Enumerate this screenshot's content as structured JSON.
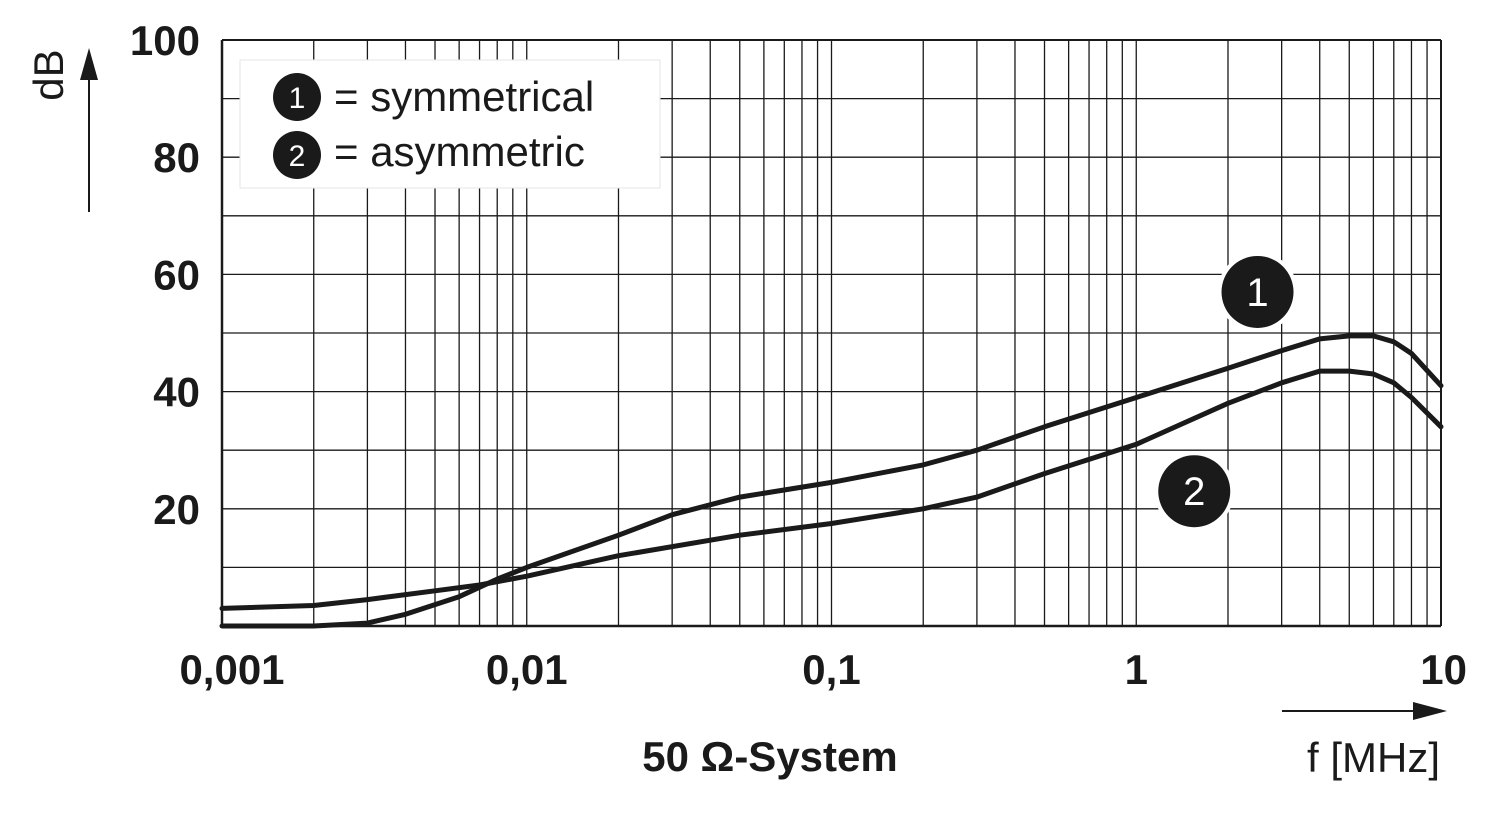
{
  "chart_data": {
    "type": "line",
    "title": "",
    "subtitle": "50 Ω-System",
    "xlabel": "f [MHz]",
    "ylabel": "dB",
    "x_scale": "log",
    "xlim": [
      0.001,
      10
    ],
    "ylim": [
      0,
      100
    ],
    "grid": true,
    "x_ticks": [
      "0,001",
      "0,01",
      "0,1",
      "1",
      "10"
    ],
    "y_ticks": [
      "20",
      "40",
      "60",
      "80",
      "100"
    ],
    "legend_placement": "top-left",
    "legend": [
      {
        "marker": "1",
        "text": "= symmetrical"
      },
      {
        "marker": "2",
        "text": "= asymmetric"
      }
    ],
    "series": [
      {
        "name": "symmetrical",
        "marker": "1",
        "x": [
          0.001,
          0.002,
          0.003,
          0.004,
          0.006,
          0.008,
          0.01,
          0.02,
          0.03,
          0.05,
          0.1,
          0.2,
          0.3,
          0.5,
          1,
          2,
          3,
          4,
          5,
          6,
          7,
          8,
          10
        ],
        "y": [
          0,
          0,
          0.5,
          2,
          5,
          8,
          10,
          15.5,
          19,
          22,
          24.5,
          27.5,
          30,
          34,
          39,
          44,
          47,
          49,
          49.5,
          49.5,
          48.5,
          46.5,
          41
        ]
      },
      {
        "name": "asymmetric",
        "marker": "2",
        "x": [
          0.001,
          0.002,
          0.003,
          0.005,
          0.007,
          0.01,
          0.02,
          0.05,
          0.1,
          0.2,
          0.3,
          0.5,
          1,
          2,
          3,
          4,
          5,
          6,
          7,
          8,
          10
        ],
        "y": [
          3,
          3.5,
          4.5,
          6,
          7,
          8.5,
          12,
          15.5,
          17.5,
          20,
          22,
          26,
          31,
          38,
          41.5,
          43.5,
          43.5,
          43,
          41.5,
          39,
          34
        ]
      }
    ],
    "annotations": [
      {
        "label": "1",
        "series": "symmetrical"
      },
      {
        "label": "2",
        "series": "asymmetric"
      }
    ]
  }
}
